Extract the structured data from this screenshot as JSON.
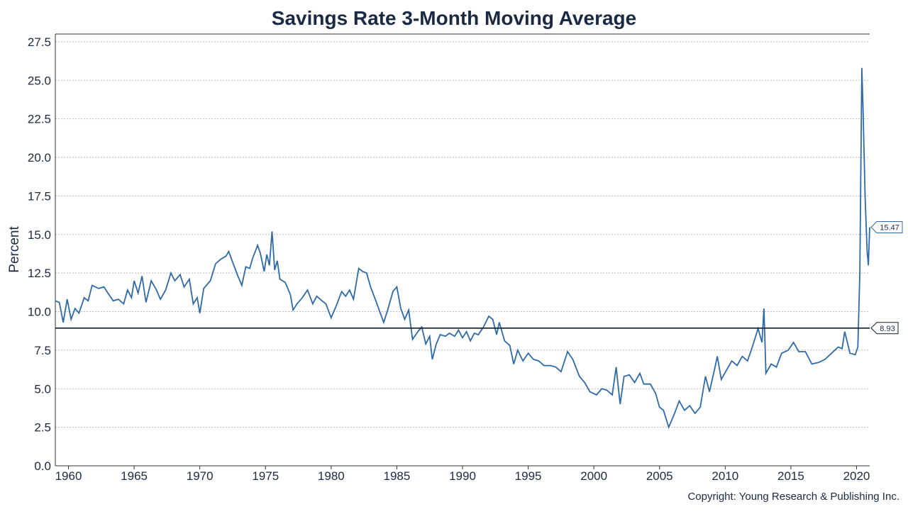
{
  "chart_data": {
    "type": "line",
    "title": "Savings Rate 3-Month Moving Average",
    "y_label": "Percent",
    "copyright": "Copyright: Young Research & Publishing Inc.",
    "reference_line": 8.93,
    "reference_color": "#0d1b2a",
    "xlim": [
      1959,
      2021
    ],
    "xticks": [
      1960,
      1965,
      1970,
      1975,
      1980,
      1985,
      1990,
      1995,
      2000,
      2005,
      2010,
      2015,
      2020
    ],
    "ylim": [
      0,
      28
    ],
    "yticks": [
      {
        "value": 0,
        "label": "0.0"
      },
      {
        "value": 2.5,
        "label": "2.5"
      },
      {
        "value": 5,
        "label": "5.0"
      },
      {
        "value": 7.5,
        "label": "7.5"
      },
      {
        "value": 10,
        "label": "10.0"
      },
      {
        "value": 12.5,
        "label": "12.5"
      },
      {
        "value": 15,
        "label": "15.0"
      },
      {
        "value": 17.5,
        "label": "17.5"
      },
      {
        "value": 20,
        "label": "20.0"
      },
      {
        "value": 22.5,
        "label": "22.5"
      },
      {
        "value": 25,
        "label": "25.0"
      },
      {
        "value": 27.5,
        "label": "27.5"
      }
    ],
    "grid": true,
    "x": [
      1959.0,
      1959.3,
      1959.6,
      1959.9,
      1960.2,
      1960.5,
      1960.8,
      1961.2,
      1961.5,
      1961.8,
      1962.3,
      1962.7,
      1963.0,
      1963.4,
      1963.8,
      1964.2,
      1964.5,
      1964.8,
      1965.0,
      1965.3,
      1965.6,
      1965.9,
      1966.3,
      1966.7,
      1967.0,
      1967.4,
      1967.8,
      1968.1,
      1968.5,
      1968.8,
      1969.2,
      1969.5,
      1969.8,
      1970.0,
      1970.3,
      1970.8,
      1971.2,
      1971.6,
      1972.0,
      1972.2,
      1972.5,
      1972.9,
      1973.2,
      1973.5,
      1973.8,
      1974.0,
      1974.4,
      1974.6,
      1974.9,
      1975.1,
      1975.3,
      1975.5,
      1975.7,
      1975.9,
      1976.1,
      1976.5,
      1976.9,
      1977.1,
      1977.4,
      1977.8,
      1978.2,
      1978.6,
      1978.9,
      1979.3,
      1979.6,
      1980.0,
      1980.4,
      1980.8,
      1981.1,
      1981.4,
      1981.7,
      1982.1,
      1982.4,
      1982.7,
      1983.0,
      1983.4,
      1983.7,
      1984.0,
      1984.3,
      1984.7,
      1985.0,
      1985.3,
      1985.6,
      1985.9,
      1986.2,
      1986.6,
      1986.9,
      1987.2,
      1987.5,
      1987.7,
      1988.0,
      1988.3,
      1988.7,
      1989.0,
      1989.4,
      1989.7,
      1990.0,
      1990.3,
      1990.6,
      1990.9,
      1991.2,
      1991.6,
      1992.0,
      1992.3,
      1992.6,
      1992.8,
      1993.2,
      1993.6,
      1993.9,
      1994.2,
      1994.6,
      1995.0,
      1995.4,
      1995.8,
      1996.2,
      1996.7,
      1997.1,
      1997.5,
      1998.0,
      1998.4,
      1998.9,
      1999.3,
      1999.7,
      2000.2,
      2000.6,
      2001.0,
      2001.4,
      2001.7,
      2002.0,
      2002.3,
      2002.7,
      2003.1,
      2003.5,
      2003.8,
      2004.3,
      2004.7,
      2005.0,
      2005.3,
      2005.7,
      2006.1,
      2006.5,
      2006.9,
      2007.3,
      2007.7,
      2008.1,
      2008.5,
      2008.8,
      2009.2,
      2009.4,
      2009.7,
      2010.1,
      2010.5,
      2010.9,
      2011.3,
      2011.7,
      2012.1,
      2012.5,
      2012.8,
      2012.95,
      2013.1,
      2013.5,
      2013.9,
      2014.3,
      2014.8,
      2015.2,
      2015.6,
      2016.1,
      2016.6,
      2017.1,
      2017.6,
      2018.1,
      2018.6,
      2018.9,
      2019.1,
      2019.5,
      2019.9,
      2020.1,
      2020.25,
      2020.4,
      2020.5,
      2020.65,
      2020.8,
      2020.9,
      2021.0
    ],
    "series": [
      {
        "name": "Savings Rate",
        "color": "#2e6aa8",
        "values": [
          10.7,
          10.6,
          9.3,
          10.8,
          9.5,
          10.2,
          9.9,
          10.9,
          10.7,
          11.7,
          11.5,
          11.6,
          11.2,
          10.7,
          10.8,
          10.5,
          11.4,
          10.9,
          12.0,
          11.2,
          12.3,
          10.6,
          12.0,
          11.4,
          10.8,
          11.4,
          12.5,
          12.0,
          12.4,
          11.6,
          12.1,
          10.5,
          10.9,
          9.9,
          11.5,
          12.0,
          13.1,
          13.4,
          13.6,
          13.9,
          13.2,
          12.3,
          11.7,
          12.9,
          12.8,
          13.4,
          14.3,
          13.8,
          12.6,
          13.7,
          13.0,
          15.2,
          12.7,
          13.3,
          12.1,
          11.9,
          11.1,
          10.1,
          10.5,
          10.9,
          11.4,
          10.5,
          11.0,
          10.7,
          10.5,
          9.6,
          10.4,
          11.3,
          11.0,
          11.4,
          10.8,
          12.8,
          12.6,
          12.5,
          11.6,
          10.7,
          10.0,
          9.3,
          10.1,
          11.3,
          11.6,
          10.2,
          9.5,
          10.1,
          8.2,
          8.7,
          9.0,
          7.9,
          8.4,
          6.9,
          7.9,
          8.5,
          8.4,
          8.6,
          8.4,
          8.8,
          8.3,
          8.7,
          8.1,
          8.6,
          8.5,
          9.0,
          9.7,
          9.5,
          8.5,
          9.3,
          8.1,
          7.8,
          6.6,
          7.5,
          6.8,
          7.3,
          6.9,
          6.8,
          6.5,
          6.5,
          6.4,
          6.1,
          7.4,
          6.9,
          5.8,
          5.4,
          4.8,
          4.6,
          5.0,
          4.9,
          4.6,
          6.4,
          4.0,
          5.8,
          5.9,
          5.4,
          6.0,
          5.3,
          5.3,
          4.7,
          3.8,
          3.6,
          2.5,
          3.3,
          4.2,
          3.6,
          3.9,
          3.4,
          3.8,
          5.8,
          4.8,
          6.3,
          7.1,
          5.6,
          6.2,
          6.8,
          6.5,
          7.1,
          6.8,
          7.8,
          8.9,
          8.0,
          10.2,
          6.0,
          6.6,
          6.4,
          7.3,
          7.5,
          8.0,
          7.4,
          7.4,
          6.6,
          6.7,
          6.9,
          7.3,
          7.7,
          7.6,
          8.7,
          7.3,
          7.2,
          7.7,
          12.5,
          25.8,
          23.0,
          17.5,
          14.0,
          13.0,
          15.47
        ]
      }
    ]
  }
}
